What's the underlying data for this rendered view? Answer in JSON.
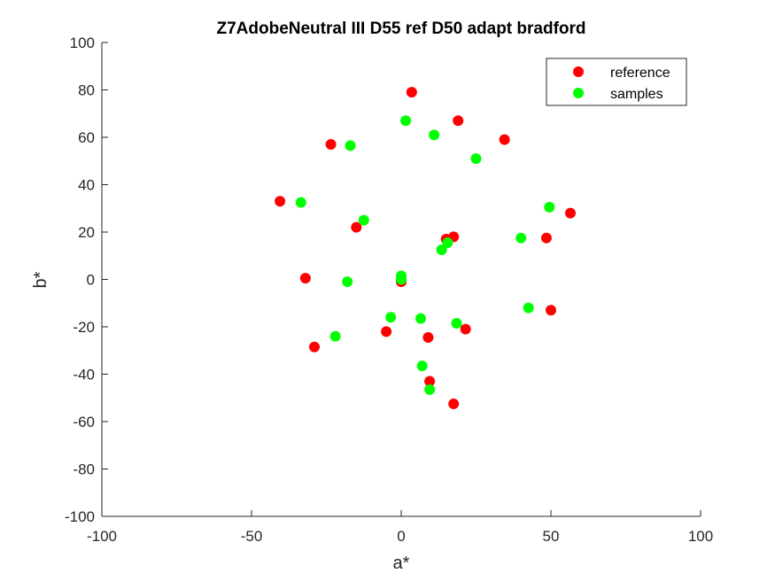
{
  "chart_data": {
    "type": "scatter",
    "title": "Z7AdobeNeutral III D55 ref D50 adapt bradford",
    "xlabel": "a*",
    "ylabel": "b*",
    "xlim": [
      -100,
      100
    ],
    "ylim": [
      -100,
      100
    ],
    "xticks": [
      -100,
      -50,
      0,
      50,
      100
    ],
    "yticks": [
      -100,
      -80,
      -60,
      -40,
      -20,
      0,
      20,
      40,
      60,
      80,
      100
    ],
    "grid": false,
    "legend_position": "top-right",
    "series": [
      {
        "name": "reference",
        "color": "#ff0000",
        "points": [
          [
            3.5,
            79
          ],
          [
            19,
            67
          ],
          [
            -23.5,
            57
          ],
          [
            34.5,
            59
          ],
          [
            -40.5,
            33
          ],
          [
            56.5,
            28
          ],
          [
            -15,
            22
          ],
          [
            17.5,
            18
          ],
          [
            15,
            17
          ],
          [
            48.5,
            17.5
          ],
          [
            -32,
            0.5
          ],
          [
            0,
            -1
          ],
          [
            50,
            -13
          ],
          [
            -5,
            -22
          ],
          [
            9,
            -24.5
          ],
          [
            21.5,
            -21
          ],
          [
            -29,
            -28.5
          ],
          [
            9.5,
            -43
          ],
          [
            17.5,
            -52.5
          ]
        ]
      },
      {
        "name": "samples",
        "color": "#00ff00",
        "points": [
          [
            1.5,
            67
          ],
          [
            11,
            61
          ],
          [
            -17,
            56.5
          ],
          [
            25,
            51
          ],
          [
            -33.5,
            32.5
          ],
          [
            49.5,
            30.5
          ],
          [
            -12.5,
            25
          ],
          [
            40,
            17.5
          ],
          [
            15.5,
            15.5
          ],
          [
            13.5,
            12.5
          ],
          [
            0,
            1.5
          ],
          [
            0,
            0
          ],
          [
            -18,
            -1
          ],
          [
            -3.5,
            -16
          ],
          [
            6.5,
            -16.5
          ],
          [
            42.5,
            -12
          ],
          [
            18.5,
            -18.5
          ],
          [
            -22,
            -24
          ],
          [
            7,
            -36.5
          ],
          [
            9.5,
            -46.5
          ]
        ]
      }
    ]
  }
}
